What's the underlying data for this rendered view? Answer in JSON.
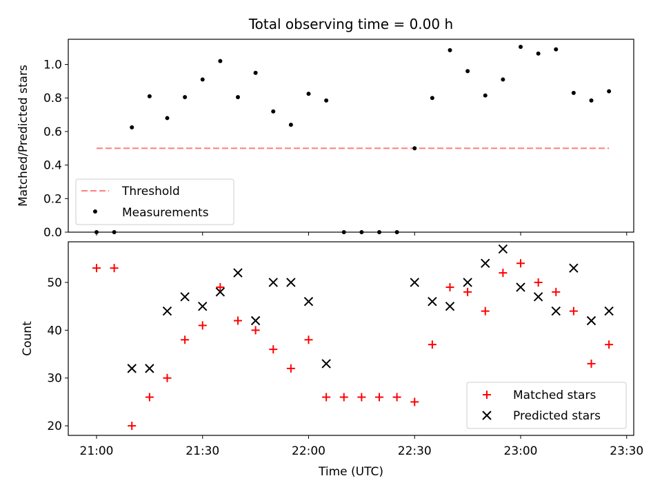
{
  "chart_data": [
    {
      "type": "scatter",
      "title": "Total observing time = 0.00 h",
      "xlabel": "",
      "ylabel": "Matched/Predicted stars",
      "xlim": [
        "20:52",
        "23:32"
      ],
      "ylim": [
        0.0,
        1.15
      ],
      "yticks": [
        "0.0",
        "0.2",
        "0.4",
        "0.6",
        "0.8",
        "1.0"
      ],
      "legend_position": "lower-left",
      "colors": {
        "threshold": "#ff7f7f",
        "measurements": "#000000"
      },
      "series": [
        {
          "name": "Threshold",
          "style": "dashed-line",
          "x": [
            "21:00",
            "23:25"
          ],
          "y": [
            0.5,
            0.5
          ]
        },
        {
          "name": "Measurements",
          "style": "dots",
          "x": [
            "21:00",
            "21:05",
            "21:10",
            "21:15",
            "21:20",
            "21:25",
            "21:30",
            "21:35",
            "21:40",
            "21:45",
            "21:50",
            "21:55",
            "22:00",
            "22:05",
            "22:10",
            "22:15",
            "22:20",
            "22:25",
            "22:30",
            "22:35",
            "22:40",
            "22:45",
            "22:50",
            "22:55",
            "23:00",
            "23:05",
            "23:10",
            "23:15",
            "23:20",
            "23:25"
          ],
          "y": [
            0.0,
            0.0,
            0.625,
            0.81,
            0.68,
            0.805,
            0.91,
            1.02,
            0.805,
            0.95,
            0.72,
            0.64,
            0.825,
            0.785,
            0.0,
            0.0,
            0.0,
            0.0,
            0.5,
            0.8,
            1.085,
            0.96,
            0.815,
            0.91,
            1.105,
            1.065,
            1.09,
            0.83,
            0.785,
            0.84
          ]
        }
      ]
    },
    {
      "type": "scatter",
      "title": "",
      "xlabel": "Time (UTC)",
      "ylabel": "Count",
      "xlim": [
        "20:52",
        "23:32"
      ],
      "ylim": [
        18,
        58.5
      ],
      "yticks": [
        "20",
        "30",
        "40",
        "50"
      ],
      "xticks": [
        "21:00",
        "21:30",
        "22:00",
        "22:30",
        "23:00",
        "23:30"
      ],
      "legend_position": "lower-right",
      "colors": {
        "matched": "#ff0000",
        "predicted": "#000000"
      },
      "series": [
        {
          "name": "Matched stars",
          "marker": "plus",
          "x": [
            "21:00",
            "21:05",
            "21:10",
            "21:15",
            "21:20",
            "21:25",
            "21:30",
            "21:35",
            "21:40",
            "21:45",
            "21:50",
            "21:55",
            "22:00",
            "22:05",
            "22:10",
            "22:15",
            "22:20",
            "22:25",
            "22:30",
            "22:35",
            "22:40",
            "22:45",
            "22:50",
            "22:55",
            "23:00",
            "23:05",
            "23:10",
            "23:15",
            "23:20",
            "23:25"
          ],
          "y": [
            53,
            53,
            20,
            26,
            30,
            38,
            41,
            49,
            42,
            40,
            36,
            32,
            38,
            26,
            26,
            26,
            26,
            26,
            25,
            37,
            49,
            48,
            44,
            52,
            54,
            50,
            48,
            44,
            33,
            37
          ]
        },
        {
          "name": "Predicted stars",
          "marker": "x",
          "x": [
            "21:10",
            "21:15",
            "21:20",
            "21:25",
            "21:30",
            "21:35",
            "21:40",
            "21:45",
            "21:50",
            "21:55",
            "22:00",
            "22:05",
            "22:30",
            "22:35",
            "22:40",
            "22:45",
            "22:50",
            "22:55",
            "23:00",
            "23:05",
            "23:10",
            "23:15",
            "23:20",
            "23:25"
          ],
          "y": [
            32,
            32,
            44,
            47,
            45,
            48,
            52,
            42,
            50,
            50,
            46,
            33,
            50,
            46,
            45,
            50,
            54,
            57,
            49,
            47,
            44,
            53,
            42,
            44
          ]
        }
      ]
    }
  ]
}
